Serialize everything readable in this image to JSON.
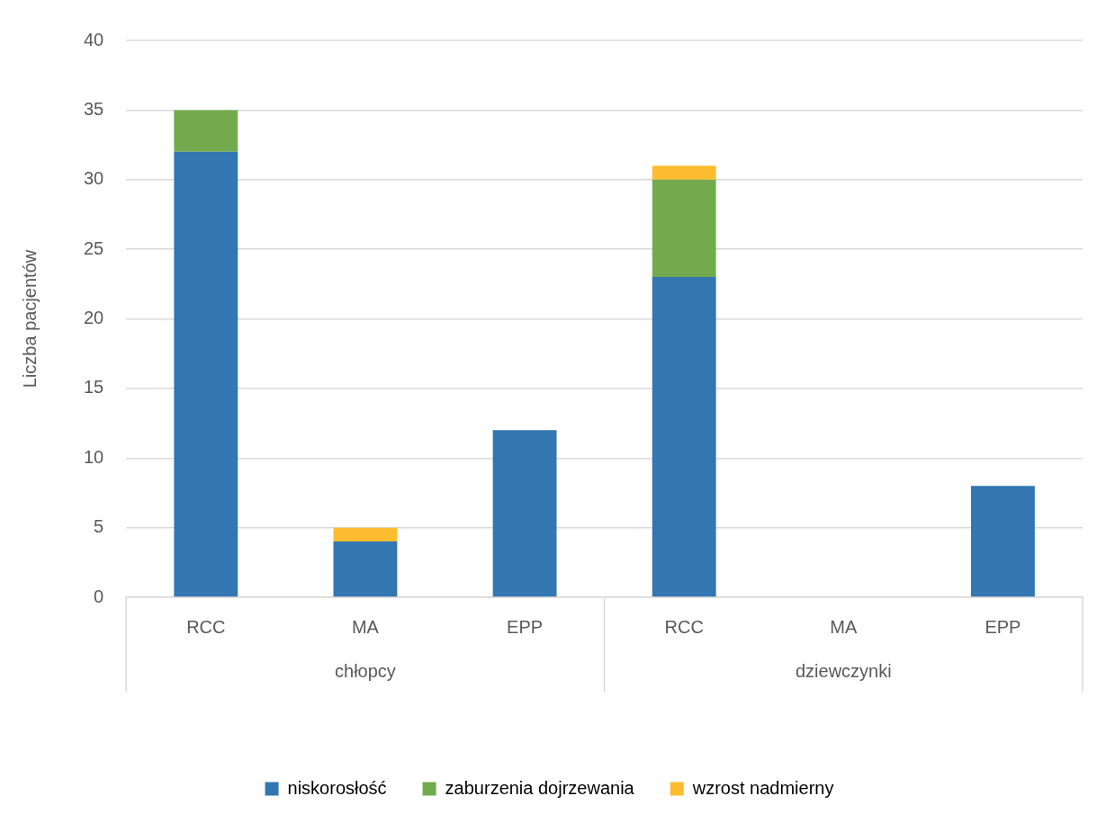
{
  "chart_data": {
    "type": "bar",
    "stacked": true,
    "ylabel": "Liczba pacjentów",
    "categories": [
      "RCC",
      "MA",
      "EPP",
      "RCC",
      "MA",
      "EPP"
    ],
    "series": [
      {
        "name": "niskorosłość",
        "color": "#3276b2",
        "values": [
          32,
          4,
          12,
          23,
          0,
          8
        ]
      },
      {
        "name": "zaburzenia dojrzewania",
        "color": "#72aa4d",
        "values": [
          3,
          0,
          0,
          7,
          0,
          0
        ]
      },
      {
        "name": "wzrost nadmierny",
        "color": "#fbbd2f",
        "values": [
          0,
          1,
          0,
          1,
          0,
          0
        ]
      }
    ],
    "ylim": [
      0,
      40
    ],
    "yticks": [
      0,
      5,
      10,
      15,
      20,
      25,
      30,
      35,
      40
    ],
    "grid": "y",
    "legend": "bottom",
    "annotations": [
      "chłopcy",
      "dziewczynki"
    ]
  }
}
